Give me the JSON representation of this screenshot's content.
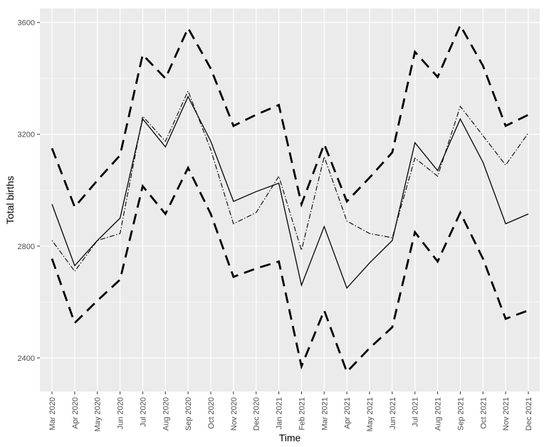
{
  "chart_data": {
    "type": "line",
    "xlabel": "Time",
    "ylabel": "Total births",
    "x": [
      "Mar 2020",
      "Apr 2020",
      "May 2020",
      "Jun 2020",
      "Jul 2020",
      "Aug 2020",
      "Sep 2020",
      "Oct 2020",
      "Nov 2020",
      "Dec 2020",
      "Jan 2021",
      "Feb 2021",
      "Mar 2021",
      "Apr 2021",
      "May 2021",
      "Jun 2021",
      "Jul 2021",
      "Aug 2021",
      "Sep 2021",
      "Oct 2021",
      "Nov 2021",
      "Dec 2021"
    ],
    "ylim": [
      2280,
      3650
    ],
    "yticks": [
      2400,
      2800,
      3200,
      3600
    ],
    "grid": true,
    "legend": "none",
    "series": [
      {
        "style": "solid",
        "values": [
          2950,
          2730,
          2820,
          2900,
          3255,
          3155,
          3335,
          3175,
          2960,
          2995,
          3025,
          2660,
          2870,
          2650,
          2740,
          2820,
          3170,
          3070,
          3255,
          3100,
          2880,
          2915
        ]
      },
      {
        "style": "dashdot",
        "values": [
          2820,
          2710,
          2820,
          2845,
          3265,
          3175,
          3355,
          3145,
          2880,
          2920,
          3050,
          2785,
          3120,
          2890,
          2845,
          2830,
          3115,
          3050,
          3300,
          3195,
          3090,
          3205
        ]
      },
      {
        "style": "longdash",
        "values": [
          3150,
          2940,
          3035,
          3125,
          3485,
          3400,
          3580,
          3435,
          3230,
          3270,
          3305,
          2950,
          3165,
          2960,
          3045,
          3135,
          3495,
          3405,
          3590,
          3445,
          3230,
          3270
        ]
      },
      {
        "style": "longdash",
        "values": [
          2755,
          2525,
          2605,
          2680,
          3015,
          2915,
          3080,
          2915,
          2690,
          2720,
          2745,
          2370,
          2570,
          2350,
          2435,
          2510,
          2850,
          2745,
          2920,
          2755,
          2540,
          2570
        ]
      }
    ]
  }
}
